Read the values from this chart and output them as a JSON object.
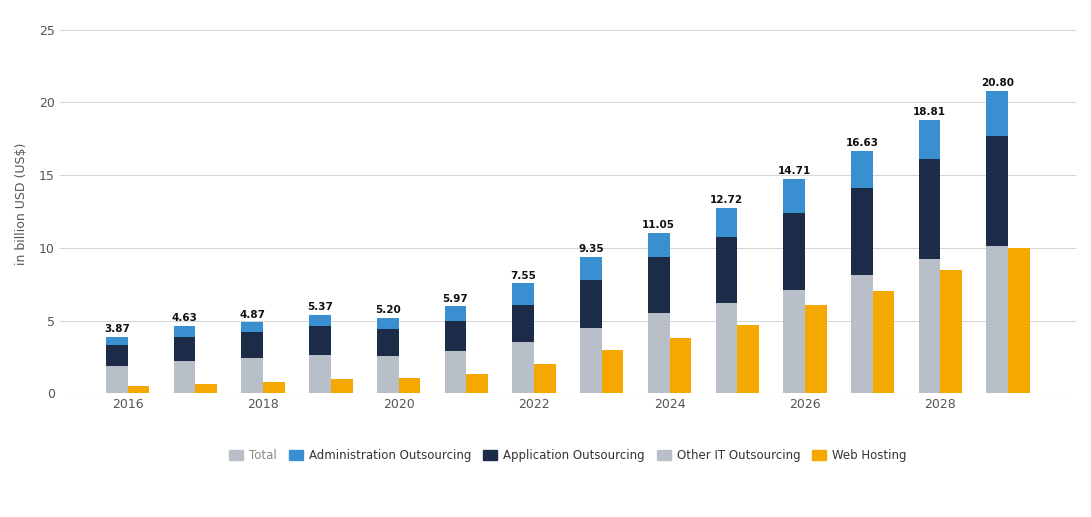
{
  "years": [
    2016,
    2017,
    2018,
    2019,
    2020,
    2021,
    2022,
    2023,
    2024,
    2025,
    2026,
    2027,
    2028,
    2029
  ],
  "totals": [
    3.87,
    4.63,
    4.87,
    5.37,
    5.2,
    5.97,
    7.55,
    9.35,
    11.05,
    12.72,
    14.71,
    16.63,
    18.81,
    20.8
  ],
  "other_it_outsourcing": [
    1.9,
    2.2,
    2.4,
    2.65,
    2.55,
    2.9,
    3.5,
    4.5,
    5.5,
    6.2,
    7.1,
    8.1,
    9.2,
    10.1
  ],
  "application_outsourcing": [
    1.4,
    1.7,
    1.8,
    2.0,
    1.9,
    2.1,
    2.6,
    3.3,
    3.9,
    4.55,
    5.3,
    6.0,
    6.9,
    7.6
  ],
  "administration_outsourcing": [
    0.57,
    0.73,
    0.67,
    0.72,
    0.75,
    0.97,
    1.45,
    1.55,
    1.65,
    1.97,
    2.31,
    2.53,
    2.71,
    3.1
  ],
  "web_hosting": [
    0.47,
    0.65,
    0.8,
    1.0,
    1.05,
    1.35,
    2.0,
    3.0,
    3.8,
    4.7,
    6.1,
    7.0,
    8.5,
    10.0
  ],
  "color_other_it": "#b8bfc9",
  "color_application": "#1c2b47",
  "color_administration": "#3a8fd1",
  "color_web_hosting": "#f5a800",
  "color_total_legend": "#b8bfc9",
  "ylabel": "in billion USD (US$)",
  "ylim": [
    0,
    26
  ],
  "yticks": [
    0,
    5,
    10,
    15,
    20,
    25
  ],
  "bar_width": 0.32,
  "background_color": "#ffffff",
  "grid_color": "#d5d5d5",
  "label_total": "Total",
  "label_admin": "Administration Outsourcing",
  "label_app": "Application Outsourcing",
  "label_other": "Other IT Outsourcing",
  "label_web": "Web Hosting"
}
